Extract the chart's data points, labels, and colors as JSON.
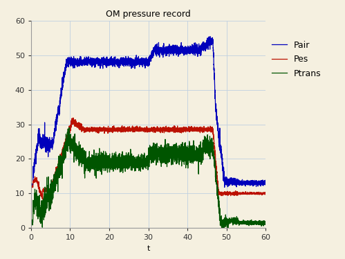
{
  "title": "OM pressure record",
  "xlabel": "t",
  "xlim": [
    0,
    60
  ],
  "ylim": [
    0,
    60
  ],
  "xticks": [
    0,
    10,
    20,
    30,
    40,
    50,
    60
  ],
  "yticks": [
    0,
    10,
    20,
    30,
    40,
    50,
    60
  ],
  "background_color": "#f5f0e0",
  "grid_color": "#c0d0e0",
  "line_color_pair": "#0000bb",
  "line_color_pes": "#bb1100",
  "line_color_ptrans": "#005500",
  "line_width": 0.9,
  "title_fontsize": 9,
  "axis_fontsize": 8,
  "legend_fontsize": 9
}
